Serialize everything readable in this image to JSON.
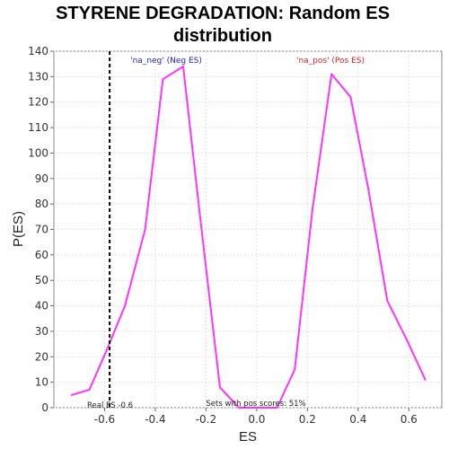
{
  "chart_data": {
    "type": "line",
    "title_lines": [
      "STYRENE DEGRADATION: Random ES",
      "distribution"
    ],
    "xlabel": "ES",
    "ylabel": "P(ES)",
    "xlim": [
      -0.8,
      0.73
    ],
    "ylim": [
      0,
      140
    ],
    "x_ticks": [
      -0.6,
      -0.4,
      -0.2,
      0.0,
      0.2,
      0.4,
      0.6
    ],
    "x_tick_labels": [
      "-0.6",
      "-0.4",
      "-0.2",
      "0.0",
      "0.2",
      "0.4",
      "0.6"
    ],
    "y_ticks": [
      0,
      10,
      20,
      30,
      40,
      50,
      60,
      70,
      80,
      90,
      100,
      110,
      120,
      130,
      140
    ],
    "y_tick_labels": [
      "0",
      "10",
      "20",
      "30",
      "40",
      "50",
      "60",
      "70",
      "80",
      "90",
      "100",
      "110",
      "120",
      "130",
      "140"
    ],
    "grid": true,
    "series": [
      {
        "name": "Random ES distribution",
        "color": "#ff33ff",
        "x": [
          -0.73,
          -0.66,
          -0.59,
          -0.52,
          -0.44,
          -0.37,
          -0.29,
          -0.22,
          -0.145,
          -0.07,
          0.0,
          0.08,
          0.15,
          0.22,
          0.295,
          0.37,
          0.44,
          0.515,
          0.59,
          0.665
        ],
        "values": [
          5,
          7,
          23,
          40,
          70,
          129,
          134,
          72,
          8,
          0,
          0,
          0,
          15,
          78,
          131,
          122,
          86,
          42,
          27,
          11
        ]
      }
    ],
    "real_es": {
      "value": -0.58,
      "label": "Real ES -0.6",
      "color": "#000000"
    },
    "annotations": {
      "neg_label": "'na_neg' (Neg ES)",
      "neg_color": "#2222cc",
      "pos_label": "'na_pos' (Pos ES)",
      "pos_color": "#dd2222",
      "pos_scores_text": "Sets with pos scores: 51%"
    }
  }
}
